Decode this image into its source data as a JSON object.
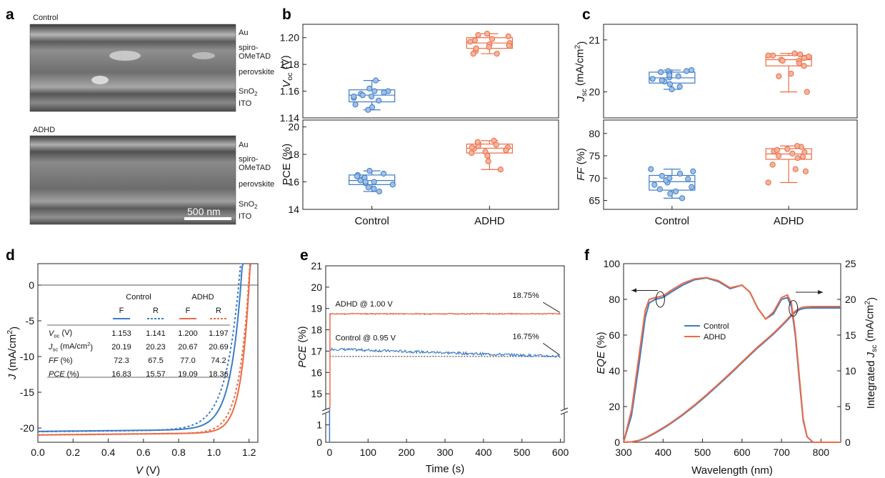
{
  "colors": {
    "control": "#3d7cc6",
    "adhd": "#ec6b45",
    "control_fill": "#9fc0e8",
    "adhd_fill": "#f6b39c"
  },
  "panel_labels": [
    "a",
    "b",
    "c",
    "d",
    "e",
    "f"
  ],
  "panel_a": {
    "top_label": "Control",
    "bottom_label": "ADHD",
    "layers_top": [
      "Au",
      "spiro-",
      "OMeTAD",
      "perovskite",
      "SnO",
      "ITO"
    ],
    "layers_bottom": [
      "Au",
      "spiro-",
      "OMeTAD",
      "perovskite",
      "SnO",
      "ITO"
    ],
    "sub2": "2",
    "scalebar": "500 nm"
  },
  "chart_data": [
    {
      "panel": "b",
      "type": "box",
      "ylabel_italic": "V",
      "ylabel_sub": "oc",
      "ylabel_unit": " (V)",
      "ylim": [
        1.14,
        1.21
      ],
      "yticks": [
        1.14,
        1.16,
        1.18,
        1.2
      ],
      "ytick_labels": [
        "1.14",
        "1.16",
        "1.18",
        "1.20"
      ],
      "categories": [
        "Control",
        "ADHD"
      ],
      "series": [
        {
          "name": "Control",
          "values": [
            1.156,
            1.16,
            1.15,
            1.158,
            1.162,
            1.148,
            1.155,
            1.16,
            1.168,
            1.146,
            1.157,
            1.159,
            1.153,
            1.156
          ],
          "box": {
            "min": 1.146,
            "q1": 1.152,
            "median": 1.157,
            "q3": 1.161,
            "max": 1.168
          }
        },
        {
          "name": "ADHD",
          "values": [
            1.195,
            1.202,
            1.188,
            1.198,
            1.199,
            1.193,
            1.19,
            1.197,
            1.201,
            1.196,
            1.188,
            1.203,
            1.194,
            1.192
          ],
          "box": {
            "min": 1.188,
            "q1": 1.192,
            "median": 1.196,
            "q3": 1.2,
            "max": 1.203
          }
        }
      ]
    },
    {
      "panel": "b",
      "type": "box",
      "ylabel": "PCE (%)",
      "ylim": [
        14,
        20.5
      ],
      "yticks": [
        14,
        16,
        18,
        20
      ],
      "ytick_labels": [
        "14",
        "16",
        "18",
        "20"
      ],
      "categories": [
        "Control",
        "ADHD"
      ],
      "series": [
        {
          "name": "Control",
          "values": [
            15.6,
            16.0,
            15.3,
            16.2,
            16.5,
            15.8,
            16.8,
            16.1,
            15.5,
            16.3,
            16.4,
            16.6,
            15.9,
            16.0
          ],
          "box": {
            "min": 15.3,
            "q1": 15.8,
            "median": 16.1,
            "q3": 16.5,
            "max": 16.8
          }
        },
        {
          "name": "ADHD",
          "values": [
            18.1,
            18.5,
            18.8,
            18.3,
            17.5,
            18.6,
            19.0,
            18.2,
            16.9,
            18.7,
            18.4,
            18.9,
            17.9,
            18.5
          ],
          "box": {
            "min": 16.9,
            "q1": 18.1,
            "median": 18.45,
            "q3": 18.75,
            "max": 19.0
          }
        }
      ]
    },
    {
      "panel": "c",
      "type": "box",
      "ylabel_italic": "J",
      "ylabel_sub": "sc",
      "ylabel_unit": " (mA/cm",
      "ylabel_sup": "2",
      "ylabel_end": ")",
      "ylim": [
        19.5,
        21.3
      ],
      "yticks": [
        20,
        21
      ],
      "ytick_labels": [
        "20",
        "21"
      ],
      "categories": [
        "Control",
        "ADHD"
      ],
      "series": [
        {
          "name": "Control",
          "values": [
            20.25,
            20.4,
            20.1,
            20.3,
            20.42,
            20.2,
            20.35,
            20.05,
            20.28,
            20.4,
            20.15,
            20.32,
            20.22,
            20.38
          ],
          "box": {
            "min": 20.05,
            "q1": 20.17,
            "median": 20.27,
            "q3": 20.38,
            "max": 20.42
          }
        },
        {
          "name": "ADHD",
          "values": [
            20.6,
            20.7,
            20.3,
            20.72,
            20.5,
            20.68,
            20.0,
            20.65,
            20.55,
            20.74,
            20.35,
            20.7,
            20.62,
            20.6
          ],
          "box": {
            "min": 20.0,
            "q1": 20.5,
            "median": 20.62,
            "q3": 20.7,
            "max": 20.74
          }
        }
      ]
    },
    {
      "panel": "c",
      "type": "box",
      "ylabel_italic": "FF",
      "ylabel_unit": " (%)",
      "ylim": [
        63,
        83
      ],
      "yticks": [
        65,
        70,
        75,
        80
      ],
      "ytick_labels": [
        "65",
        "70",
        "75",
        "80"
      ],
      "categories": [
        "Control",
        "ADHD"
      ],
      "series": [
        {
          "name": "Control",
          "values": [
            67.5,
            69.0,
            71.0,
            65.5,
            70.5,
            68.0,
            72.0,
            69.5,
            67.0,
            70.0,
            68.5,
            71.5,
            66.5,
            69.8
          ],
          "box": {
            "min": 65.5,
            "q1": 67.3,
            "median": 69.2,
            "q3": 70.6,
            "max": 72.0
          }
        },
        {
          "name": "ADHD",
          "values": [
            75.5,
            76.5,
            73.0,
            77.0,
            71.5,
            75.0,
            69.0,
            76.0,
            74.5,
            77.2,
            72.0,
            75.8,
            76.3,
            74.8
          ],
          "box": {
            "min": 69.0,
            "q1": 74.2,
            "median": 75.4,
            "q3": 76.6,
            "max": 77.2
          }
        }
      ]
    },
    {
      "panel": "d",
      "type": "line",
      "xlabel_italic": "V",
      "xlabel_unit": " (V)",
      "ylabel_italic": "J",
      "ylabel_unit": " (mA/cm",
      "ylabel_sup": "2",
      "ylabel_end": ")",
      "xlim": [
        0,
        1.25
      ],
      "ylim": [
        -22,
        3
      ],
      "xticks": [
        0,
        0.2,
        0.4,
        0.6,
        0.8,
        1.0,
        1.2
      ],
      "xtick_labels": [
        "0.0",
        "0.2",
        "0.4",
        "0.6",
        "0.8",
        "1.0",
        "1.2"
      ],
      "yticks": [
        -20,
        -15,
        -10,
        -5,
        0
      ],
      "ytick_labels": [
        "-20",
        "-15",
        "-10",
        "-5",
        "0"
      ],
      "series": [
        {
          "name": "Control F",
          "jsc": 20.19,
          "voc": 1.153,
          "ff": 72.3
        },
        {
          "name": "Control R",
          "jsc": 20.23,
          "voc": 1.141,
          "ff": 67.5
        },
        {
          "name": "ADHD F",
          "jsc": 20.67,
          "voc": 1.2,
          "ff": 77.0
        },
        {
          "name": "ADHD R",
          "jsc": 20.69,
          "voc": 1.197,
          "ff": 74.2
        }
      ],
      "table": {
        "group_headers": [
          "Control",
          "ADHD"
        ],
        "sub_headers": [
          "F",
          "R",
          "F",
          "R"
        ],
        "rows": [
          {
            "label": "V",
            "sub": "oc",
            "unit": " (V)",
            "vals": [
              "1.153",
              "1.141",
              "1.200",
              "1.197"
            ]
          },
          {
            "label": "J",
            "sub": "sc",
            "unit": " (mA/cm",
            "sup": "2",
            "end": ")",
            "vals": [
              "20.19",
              "20.23",
              "20.67",
              "20.69"
            ]
          },
          {
            "label": "FF",
            "sub": "",
            "unit": " (%)",
            "vals": [
              "72.3",
              "67.5",
              "77.0",
              "74.2"
            ]
          },
          {
            "label": "PCE",
            "sub": "",
            "unit": " (%)",
            "vals": [
              "16.83",
              "15.57",
              "19.09",
              "18.36"
            ]
          }
        ]
      }
    },
    {
      "panel": "e",
      "type": "line",
      "xlabel": "Time (s)",
      "ylabel_italic": "PCE",
      "ylabel_unit": " (%)",
      "xlim": [
        -10,
        610
      ],
      "ylim_upper": [
        14.3,
        21
      ],
      "ylim_lower": [
        0,
        1.6
      ],
      "xticks": [
        0,
        100,
        200,
        300,
        400,
        500,
        600
      ],
      "xtick_labels": [
        "0",
        "100",
        "200",
        "300",
        "400",
        "500",
        "600"
      ],
      "yticks_upper": [
        15,
        16,
        17,
        18,
        19,
        20,
        21
      ],
      "ytick_labels_upper": [
        "15",
        "16",
        "17",
        "18",
        "19",
        "20",
        "21"
      ],
      "yticks_lower": [
        0,
        1
      ],
      "ytick_labels_lower": [
        "0",
        "1"
      ],
      "series": [
        {
          "name": "ADHD",
          "condition": "ADHD  @ 1.00 V",
          "final": "18.75%",
          "level": 18.75
        },
        {
          "name": "Control",
          "condition": "Control  @ 0.95 V",
          "final": "16.75%",
          "start": 17.1,
          "level": 16.75
        }
      ]
    },
    {
      "panel": "f",
      "type": "line",
      "xlabel": "Wavelength (nm)",
      "ylabel_italic": "EQE",
      "ylabel_unit": " (%)",
      "y2label_pre": "Integrated ",
      "y2label_italic": "J",
      "y2label_sub": "sc",
      "y2label_unit": " (mA/cm",
      "y2label_sup": "2",
      "y2label_end": ")",
      "xlim": [
        300,
        850
      ],
      "ylim": [
        0,
        100
      ],
      "y2lim": [
        0,
        25
      ],
      "xticks": [
        300,
        400,
        500,
        600,
        700,
        800
      ],
      "xtick_labels": [
        "300",
        "400",
        "500",
        "600",
        "700",
        "800"
      ],
      "yticks": [
        0,
        20,
        40,
        60,
        80,
        100
      ],
      "ytick_labels": [
        "0",
        "20",
        "40",
        "60",
        "80",
        "100"
      ],
      "y2ticks": [
        0,
        5,
        10,
        15,
        20,
        25
      ],
      "y2tick_labels": [
        "0",
        "5",
        "10",
        "15",
        "20",
        "25"
      ],
      "series": [
        {
          "name": "Control",
          "eqe": [
            [
              300,
              0
            ],
            [
              320,
              15
            ],
            [
              340,
              45
            ],
            [
              355,
              70
            ],
            [
              365,
              78
            ],
            [
              380,
              80
            ],
            [
              400,
              81
            ],
            [
              420,
              84
            ],
            [
              450,
              88
            ],
            [
              480,
              91
            ],
            [
              510,
              92
            ],
            [
              540,
              90
            ],
            [
              570,
              86
            ],
            [
              600,
              88
            ],
            [
              620,
              84
            ],
            [
              640,
              75
            ],
            [
              660,
              69
            ],
            [
              680,
              72
            ],
            [
              700,
              80
            ],
            [
              715,
              81
            ],
            [
              725,
              76
            ],
            [
              735,
              60
            ],
            [
              745,
              35
            ],
            [
              755,
              12
            ],
            [
              765,
              3
            ],
            [
              780,
              0
            ],
            [
              850,
              0
            ]
          ],
          "integrated_final": 18.8
        },
        {
          "name": "ADHD",
          "eqe": [
            [
              300,
              0
            ],
            [
              320,
              18
            ],
            [
              340,
              50
            ],
            [
              355,
              74
            ],
            [
              365,
              80
            ],
            [
              380,
              81
            ],
            [
              400,
              82
            ],
            [
              420,
              85
            ],
            [
              450,
              89
            ],
            [
              480,
              91.5
            ],
            [
              510,
              92.2
            ],
            [
              540,
              90.5
            ],
            [
              570,
              86.5
            ],
            [
              600,
              88
            ],
            [
              620,
              84
            ],
            [
              640,
              75
            ],
            [
              660,
              69
            ],
            [
              680,
              73
            ],
            [
              700,
              81
            ],
            [
              715,
              82.5
            ],
            [
              725,
              78
            ],
            [
              735,
              62
            ],
            [
              745,
              37
            ],
            [
              755,
              13
            ],
            [
              765,
              3
            ],
            [
              780,
              0
            ],
            [
              850,
              0
            ]
          ],
          "integrated_final": 19.0
        }
      ]
    }
  ]
}
